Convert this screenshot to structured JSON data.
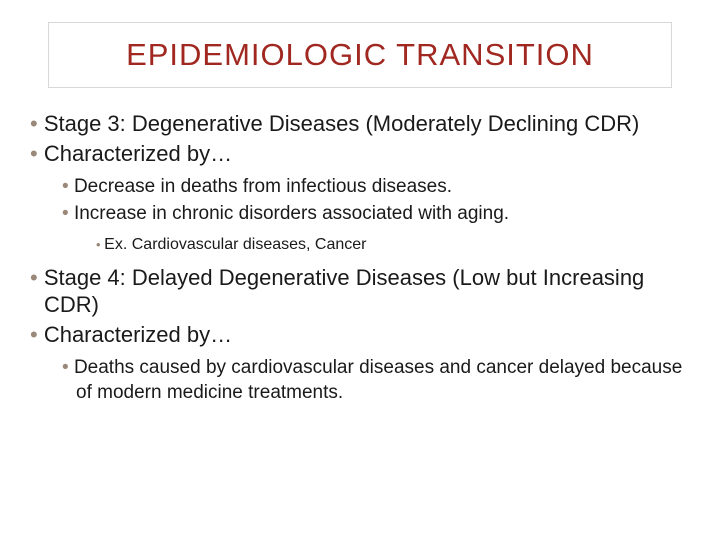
{
  "title": "EPIDEMIOLOGIC TRANSITION",
  "colors": {
    "title_color": "#a02820",
    "bullet_color": "#9a8878",
    "text_color": "#1a1a1a",
    "title_border": "#d8d8d8",
    "background": "#ffffff"
  },
  "typography": {
    "title_fontsize": 31,
    "title_letterspacing": 1,
    "l1_fontsize": 22,
    "l2_fontsize": 19,
    "l3_fontsize": 16,
    "font_family": "Arial"
  },
  "bullets": {
    "b1": "Stage 3: Degenerative Diseases (Moderately Declining CDR)",
    "b2": "Characterized by…",
    "b3": "Decrease in deaths from infectious diseases.",
    "b4": "Increase in chronic disorders associated with aging.",
    "b5": "Ex. Cardiovascular diseases, Cancer",
    "b6": "Stage 4: Delayed Degenerative Diseases (Low but Increasing CDR)",
    "b7": "Characterized by…",
    "b8": "Deaths caused by cardiovascular diseases and cancer delayed because of modern medicine treatments."
  }
}
